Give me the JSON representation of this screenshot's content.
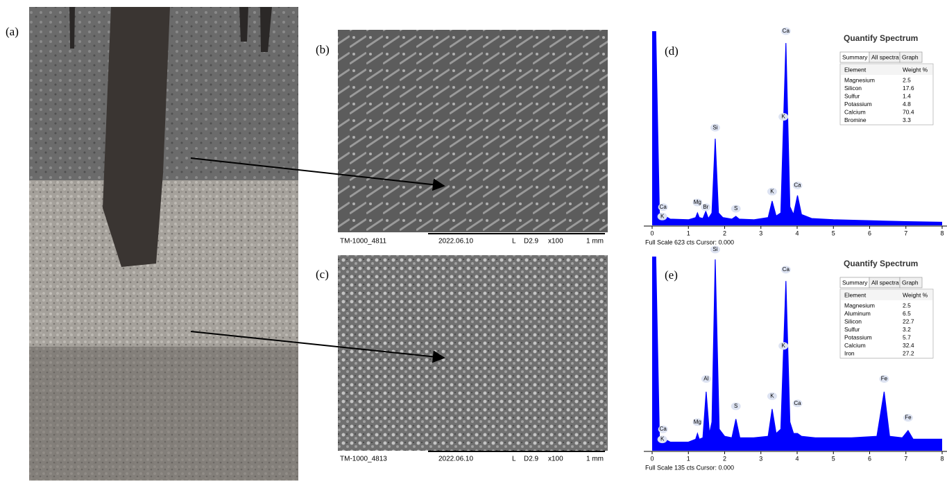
{
  "panels": {
    "a": "(a)",
    "b": "(b)",
    "c": "(c)",
    "d": "(d)",
    "e": "(e)"
  },
  "sem": [
    {
      "id": "TM-1000_4811",
      "date": "2022.06.10",
      "mode": "L",
      "wd": "D2.9",
      "mag": "x100",
      "scale": "1 mm"
    },
    {
      "id": "TM-1000_4813",
      "date": "2022.06.10",
      "mode": "L",
      "wd": "D2.9",
      "mag": "x100",
      "scale": "1 mm"
    }
  ],
  "chart_data": [
    {
      "type": "area",
      "footer": "Full Scale 623 cts Cursor: 0.000",
      "color": "#0000ff",
      "x": [
        0,
        0.1,
        0.2,
        0.5,
        1.0,
        1.2,
        1.25,
        1.3,
        1.4,
        1.48,
        1.55,
        1.65,
        1.74,
        1.83,
        1.95,
        2.2,
        2.31,
        2.4,
        2.8,
        3.2,
        3.31,
        3.42,
        3.55,
        3.69,
        3.8,
        3.9,
        4.01,
        4.12,
        4.4,
        5,
        6,
        7,
        8
      ],
      "values": [
        623,
        623,
        40,
        20,
        18,
        25,
        40,
        25,
        22,
        45,
        22,
        40,
        278,
        40,
        25,
        20,
        29,
        20,
        18,
        25,
        78,
        30,
        40,
        585,
        60,
        35,
        96,
        35,
        22,
        18,
        15,
        12,
        10
      ],
      "xlim": [
        0,
        8
      ],
      "ylim": [
        0,
        623
      ],
      "xticks": [
        0,
        1,
        2,
        3,
        4,
        5,
        6,
        7,
        8
      ],
      "peaks": [
        {
          "text": "Ca",
          "x": 0.3,
          "y": 45
        },
        {
          "text": "K",
          "x": 0.28,
          "y": 15
        },
        {
          "text": "Mg",
          "x": 1.25,
          "y": 60
        },
        {
          "text": "Br",
          "x": 1.48,
          "y": 45
        },
        {
          "text": "Si",
          "x": 1.74,
          "y": 300
        },
        {
          "text": "S",
          "x": 2.31,
          "y": 40
        },
        {
          "text": "K",
          "x": 3.31,
          "y": 95
        },
        {
          "text": "K",
          "x": 3.62,
          "y": 335
        },
        {
          "text": "Ca",
          "x": 3.69,
          "y": 610
        },
        {
          "text": "Ca",
          "x": 4.01,
          "y": 115
        }
      ],
      "quantify": {
        "title": "Quantify Spectrum",
        "tabs": [
          "Summary",
          "All spectra",
          "Graph"
        ],
        "header": [
          "Element",
          "Weight %"
        ],
        "rows": [
          [
            "Magnesium",
            "2.5"
          ],
          [
            "Silicon",
            "17.6"
          ],
          [
            "Sulfur",
            "1.4"
          ],
          [
            "Potassium",
            "4.8"
          ],
          [
            "Calcium",
            "70.4"
          ],
          [
            "Bromine",
            "3.3"
          ]
        ]
      }
    },
    {
      "type": "area",
      "footer": "Full Scale 135 cts Cursor: 0.000",
      "color": "#0000ff",
      "x": [
        0,
        0.1,
        0.2,
        0.5,
        1.0,
        1.2,
        1.25,
        1.3,
        1.4,
        1.49,
        1.58,
        1.65,
        1.74,
        1.85,
        2.0,
        2.2,
        2.31,
        2.42,
        2.8,
        3.2,
        3.31,
        3.42,
        3.55,
        3.69,
        3.8,
        3.9,
        4.01,
        4.12,
        4.5,
        5,
        5.5,
        6.2,
        6.4,
        6.55,
        6.9,
        7.06,
        7.2,
        8
      ],
      "values": [
        135,
        135,
        10,
        6,
        6,
        8,
        12,
        8,
        9,
        41,
        12,
        20,
        133,
        15,
        10,
        9,
        22,
        9,
        9,
        10,
        29,
        12,
        15,
        118,
        20,
        12,
        12,
        10,
        9,
        9,
        9,
        10,
        41,
        10,
        9,
        14,
        8,
        8
      ],
      "xlim": [
        0,
        8
      ],
      "ylim": [
        0,
        135
      ],
      "xticks": [
        0,
        1,
        2,
        3,
        4,
        5,
        6,
        7,
        8
      ],
      "peaks": [
        {
          "text": "Ca",
          "x": 0.3,
          "y": 12
        },
        {
          "text": "K",
          "x": 0.28,
          "y": 5
        },
        {
          "text": "Mg",
          "x": 1.25,
          "y": 17
        },
        {
          "text": "Al",
          "x": 1.49,
          "y": 47
        },
        {
          "text": "Si",
          "x": 1.74,
          "y": 137
        },
        {
          "text": "S",
          "x": 2.31,
          "y": 28
        },
        {
          "text": "K",
          "x": 3.31,
          "y": 35
        },
        {
          "text": "K",
          "x": 3.62,
          "y": 70
        },
        {
          "text": "Ca",
          "x": 3.69,
          "y": 123
        },
        {
          "text": "Ca",
          "x": 4.01,
          "y": 30
        },
        {
          "text": "Fe",
          "x": 6.4,
          "y": 47
        },
        {
          "text": "Fe",
          "x": 7.06,
          "y": 20
        }
      ],
      "quantify": {
        "title": "Quantify Spectrum",
        "tabs": [
          "Summary",
          "All spectra",
          "Graph"
        ],
        "header": [
          "Element",
          "Weight %"
        ],
        "rows": [
          [
            "Magnesium",
            "2.5"
          ],
          [
            "Aluminum",
            "6.5"
          ],
          [
            "Silicon",
            "22.7"
          ],
          [
            "Sulfur",
            "3.2"
          ],
          [
            "Potassium",
            "5.7"
          ],
          [
            "Calcium",
            "32.4"
          ],
          [
            "Iron",
            "27.2"
          ]
        ]
      }
    }
  ]
}
